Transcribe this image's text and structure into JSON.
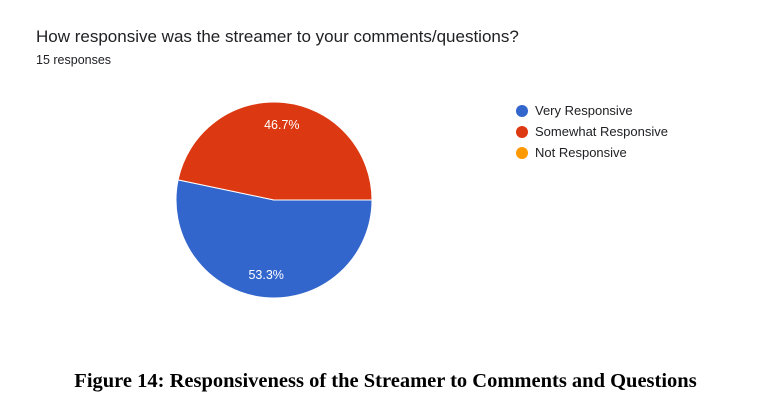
{
  "chart_data": {
    "type": "pie",
    "title": "How responsive was the streamer to your comments/questions?",
    "subtitle": "15 responses",
    "categories": [
      "Very Responsive",
      "Somewhat Responsive",
      "Not Responsive"
    ],
    "values": [
      53.3,
      46.7,
      0
    ],
    "data_labels": [
      "53.3%",
      "46.7%",
      ""
    ],
    "colors": [
      "#3366cc",
      "#dc3912",
      "#ff9900"
    ],
    "legend_position": "right"
  },
  "caption": "Figure 14: Responsiveness of the Streamer to Comments and Questions"
}
